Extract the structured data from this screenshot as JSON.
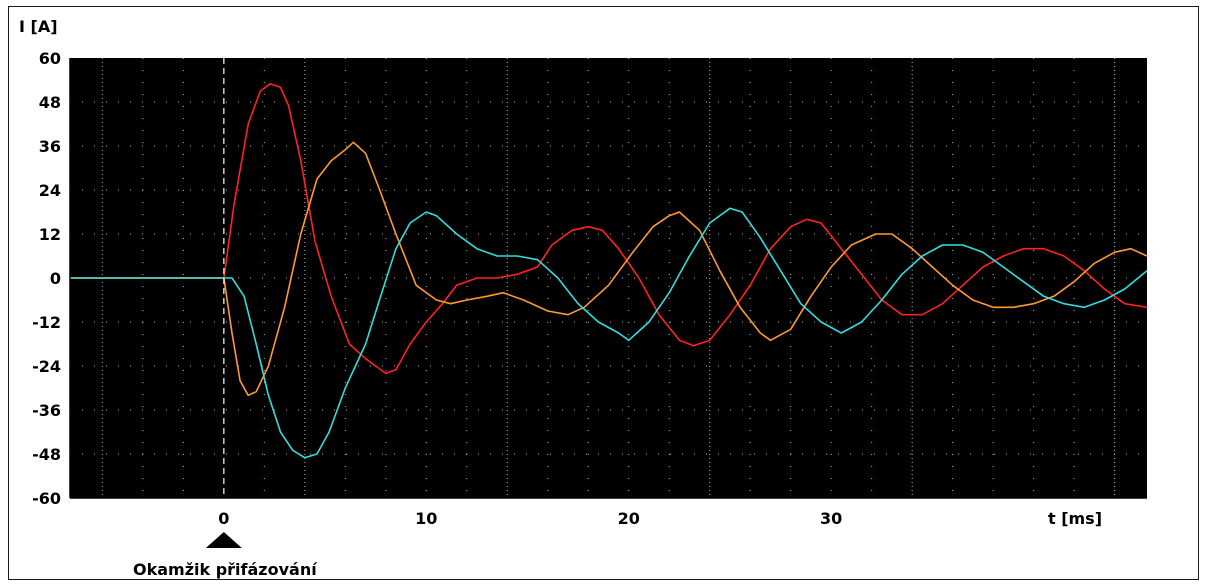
{
  "chart_data": {
    "type": "line",
    "ylabel": "I [A]",
    "xlabel": "t [ms]",
    "xlim": [
      -7.6,
      45.6
    ],
    "ylim": [
      -60,
      60
    ],
    "yticks": [
      60,
      48,
      36,
      24,
      12,
      0,
      -12,
      -24,
      -36,
      -48,
      -60
    ],
    "xticks": [
      0,
      10,
      20,
      30
    ],
    "grid": "dotted",
    "background": "#000000",
    "annotation": {
      "x": 0,
      "text": "Okamžik přifázování"
    },
    "series": [
      {
        "color": "#ff2222",
        "points": [
          [
            -7.6,
            0
          ],
          [
            0,
            0
          ],
          [
            0.5,
            20
          ],
          [
            1.2,
            42
          ],
          [
            1.8,
            51
          ],
          [
            2.3,
            53
          ],
          [
            2.8,
            52
          ],
          [
            3.2,
            47
          ],
          [
            3.8,
            32
          ],
          [
            4.5,
            10
          ],
          [
            5.3,
            -5
          ],
          [
            6.2,
            -18
          ],
          [
            7,
            -22
          ],
          [
            7.5,
            -24
          ],
          [
            8,
            -26
          ],
          [
            8.5,
            -25
          ],
          [
            9.2,
            -18
          ],
          [
            10,
            -12
          ],
          [
            10.8,
            -7
          ],
          [
            11.5,
            -2
          ],
          [
            12.5,
            0
          ],
          [
            13.5,
            0
          ],
          [
            14.5,
            1
          ],
          [
            15.5,
            3
          ],
          [
            16.2,
            9
          ],
          [
            17.2,
            13
          ],
          [
            18,
            14
          ],
          [
            18.7,
            13
          ],
          [
            19.5,
            8
          ],
          [
            20.5,
            0
          ],
          [
            21.5,
            -10
          ],
          [
            22.5,
            -17
          ],
          [
            23.2,
            -18.5
          ],
          [
            24,
            -17
          ],
          [
            25,
            -10
          ],
          [
            26,
            -2
          ],
          [
            27,
            8
          ],
          [
            28,
            14
          ],
          [
            28.8,
            16
          ],
          [
            29.5,
            15
          ],
          [
            30.5,
            8
          ],
          [
            31.5,
            1
          ],
          [
            32.5,
            -6
          ],
          [
            33.5,
            -10
          ],
          [
            34.5,
            -10
          ],
          [
            35.5,
            -7
          ],
          [
            36.5,
            -2
          ],
          [
            37.5,
            3
          ],
          [
            38.5,
            6
          ],
          [
            39.5,
            8
          ],
          [
            40.5,
            8
          ],
          [
            41.5,
            6
          ],
          [
            42.5,
            2
          ],
          [
            43.5,
            -3
          ],
          [
            44.5,
            -7
          ],
          [
            45.6,
            -8
          ]
        ]
      },
      {
        "color": "#ff9933",
        "points": [
          [
            -7.6,
            0
          ],
          [
            0,
            0
          ],
          [
            0.4,
            -15
          ],
          [
            0.8,
            -28
          ],
          [
            1.2,
            -32
          ],
          [
            1.6,
            -31
          ],
          [
            2.2,
            -24
          ],
          [
            3,
            -8
          ],
          [
            3.8,
            12
          ],
          [
            4.6,
            27
          ],
          [
            5.3,
            32
          ],
          [
            6,
            35
          ],
          [
            6.4,
            37
          ],
          [
            7,
            34
          ],
          [
            7.7,
            24
          ],
          [
            8.5,
            12
          ],
          [
            9.5,
            -2
          ],
          [
            10.5,
            -6
          ],
          [
            11.2,
            -7
          ],
          [
            12,
            -6
          ],
          [
            13,
            -5
          ],
          [
            13.8,
            -4
          ],
          [
            14.8,
            -6
          ],
          [
            16,
            -9
          ],
          [
            17,
            -10
          ],
          [
            17.8,
            -8
          ],
          [
            19,
            -2
          ],
          [
            20.2,
            7
          ],
          [
            21.2,
            14
          ],
          [
            22,
            17
          ],
          [
            22.5,
            18
          ],
          [
            23.5,
            13
          ],
          [
            24.5,
            2
          ],
          [
            25.5,
            -8
          ],
          [
            26.5,
            -15
          ],
          [
            27,
            -17
          ],
          [
            28,
            -14
          ],
          [
            29,
            -5
          ],
          [
            30,
            3
          ],
          [
            31,
            9
          ],
          [
            32.2,
            12
          ],
          [
            33,
            12
          ],
          [
            34,
            8
          ],
          [
            35,
            3
          ],
          [
            36,
            -2
          ],
          [
            37,
            -6
          ],
          [
            38,
            -8
          ],
          [
            39,
            -8
          ],
          [
            40,
            -7
          ],
          [
            41,
            -5
          ],
          [
            42,
            -1
          ],
          [
            43,
            4
          ],
          [
            44,
            7
          ],
          [
            44.8,
            8
          ],
          [
            45.6,
            6
          ]
        ]
      },
      {
        "color": "#33dddd",
        "points": [
          [
            -7.6,
            0
          ],
          [
            0,
            0
          ],
          [
            0.4,
            0
          ],
          [
            1,
            -5
          ],
          [
            1.6,
            -18
          ],
          [
            2.2,
            -32
          ],
          [
            2.8,
            -42
          ],
          [
            3.4,
            -47
          ],
          [
            4,
            -49
          ],
          [
            4.6,
            -48
          ],
          [
            5.2,
            -42
          ],
          [
            6,
            -30
          ],
          [
            7,
            -18
          ],
          [
            7.8,
            -4
          ],
          [
            8.5,
            8
          ],
          [
            9.2,
            15
          ],
          [
            10,
            18
          ],
          [
            10.5,
            17
          ],
          [
            11.5,
            12
          ],
          [
            12.5,
            8
          ],
          [
            13.5,
            6
          ],
          [
            14.5,
            6
          ],
          [
            15.5,
            5
          ],
          [
            16.5,
            0
          ],
          [
            17.5,
            -7
          ],
          [
            18.5,
            -12
          ],
          [
            19.5,
            -15
          ],
          [
            20,
            -17
          ],
          [
            21,
            -12
          ],
          [
            22,
            -4
          ],
          [
            23,
            6
          ],
          [
            24,
            15
          ],
          [
            25,
            19
          ],
          [
            25.6,
            18
          ],
          [
            26.5,
            11
          ],
          [
            27.5,
            2
          ],
          [
            28.5,
            -7
          ],
          [
            29.5,
            -12
          ],
          [
            30.5,
            -15
          ],
          [
            31.5,
            -12
          ],
          [
            32.5,
            -6
          ],
          [
            33.5,
            1
          ],
          [
            34.5,
            6
          ],
          [
            35.5,
            9
          ],
          [
            36.5,
            9
          ],
          [
            37.5,
            7
          ],
          [
            38.5,
            3
          ],
          [
            39.5,
            -1
          ],
          [
            40.5,
            -5
          ],
          [
            41.5,
            -7
          ],
          [
            42.5,
            -8
          ],
          [
            43.5,
            -6
          ],
          [
            44.5,
            -3
          ],
          [
            45.6,
            2
          ]
        ]
      }
    ]
  }
}
